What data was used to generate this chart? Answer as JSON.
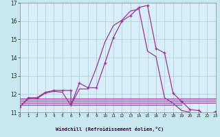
{
  "title": "",
  "xlabel": "Windchill (Refroidissement éolien,°C)",
  "background_color": "#c8e8f0",
  "plot_bg_color": "#d8eef8",
  "grid_color": "#b0c8d8",
  "line_color": "#993399",
  "xlim": [
    0,
    23
  ],
  "ylim": [
    11.0,
    17.0
  ],
  "yticks": [
    11,
    12,
    13,
    14,
    15,
    16,
    17
  ],
  "xticks": [
    0,
    1,
    2,
    3,
    4,
    5,
    6,
    7,
    8,
    9,
    10,
    11,
    12,
    13,
    14,
    15,
    16,
    17,
    18,
    19,
    20,
    21,
    22,
    23
  ],
  "curve1_x": [
    0,
    1,
    2,
    3,
    4,
    5,
    6,
    6,
    7,
    8,
    9,
    10,
    11,
    12,
    13,
    14,
    15,
    16,
    17,
    18,
    19,
    20,
    21,
    22,
    23
  ],
  "curve1_y": [
    11.3,
    11.8,
    11.8,
    12.1,
    12.2,
    12.2,
    12.2,
    11.4,
    12.6,
    12.35,
    12.35,
    13.7,
    15.1,
    16.0,
    16.3,
    16.75,
    16.85,
    14.5,
    14.25,
    12.05,
    11.6,
    11.15,
    11.1,
    10.8,
    11.05
  ],
  "curve2_x": [
    0,
    1,
    2,
    3,
    4,
    5,
    6,
    7,
    8,
    9,
    10,
    11,
    12,
    13,
    14,
    15,
    16,
    17,
    18,
    19,
    20,
    21,
    22,
    23
  ],
  "curve2_y": [
    11.3,
    11.75,
    11.75,
    12.05,
    12.15,
    12.1,
    11.38,
    12.28,
    12.28,
    13.45,
    14.85,
    15.75,
    16.05,
    16.55,
    16.65,
    14.35,
    14.05,
    11.8,
    11.5,
    11.1,
    11.0,
    10.72,
    10.97,
    10.97
  ],
  "flat_lines": [
    {
      "x": [
        0,
        23
      ],
      "y": [
        11.75,
        11.75
      ]
    },
    {
      "x": [
        0,
        23
      ],
      "y": [
        11.62,
        11.62
      ]
    },
    {
      "x": [
        0,
        23
      ],
      "y": [
        11.52,
        11.52
      ]
    },
    {
      "x": [
        0,
        19
      ],
      "y": [
        11.42,
        11.42
      ]
    }
  ]
}
